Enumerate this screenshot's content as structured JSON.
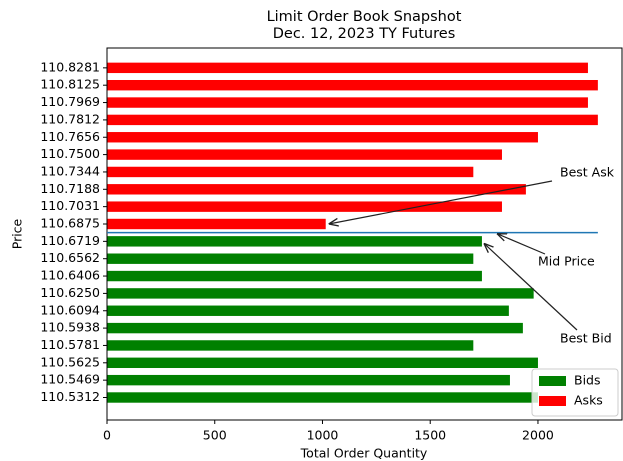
{
  "chart_data": {
    "type": "barh",
    "title": [
      "Limit Order Book Snapshot",
      "Dec. 12, 2023 TY Futures"
    ],
    "x_label": "Total Order Quantity",
    "y_label": "Price",
    "categories": [
      "110.5312",
      "110.5469",
      "110.5625",
      "110.5781",
      "110.5938",
      "110.6094",
      "110.6250",
      "110.6406",
      "110.6562",
      "110.6719",
      "110.6875",
      "110.7031",
      "110.7188",
      "110.7344",
      "110.7500",
      "110.7656",
      "110.7812",
      "110.7969",
      "110.8125",
      "110.8281"
    ],
    "series": [
      {
        "name": "Bids",
        "color": "#008000",
        "values": [
          2000,
          1870,
          2000,
          1700,
          1930,
          1865,
          1980,
          1740,
          1700,
          1740,
          null,
          null,
          null,
          null,
          null,
          null,
          null,
          null,
          null,
          null
        ]
      },
      {
        "name": "Asks",
        "color": "#ff0000",
        "values": [
          null,
          null,
          null,
          null,
          null,
          null,
          null,
          null,
          null,
          null,
          1015,
          1833,
          1944,
          1700,
          1833,
          2000,
          2278,
          2232,
          2278,
          2232
        ]
      }
    ],
    "xlim": [
      0,
      2390
    ],
    "xticks": [
      0,
      500,
      1000,
      1500,
      2000
    ],
    "mid_line_color": "#1f77b4",
    "annotations": [
      "Best Ask",
      "Mid Price",
      "Best Bid"
    ],
    "legend": "lower right",
    "grid": false
  }
}
